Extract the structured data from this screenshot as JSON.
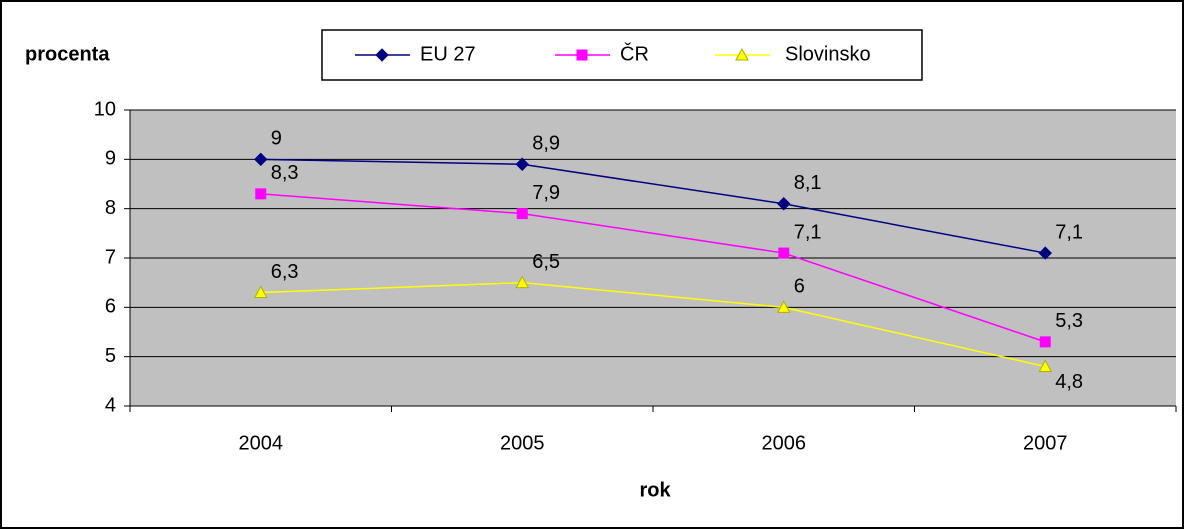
{
  "chart_data": {
    "type": "line",
    "y_label": "procenta",
    "x_label": "rok",
    "categories": [
      "2004",
      "2005",
      "2006",
      "2007"
    ],
    "series": [
      {
        "name": "EU 27",
        "color": "#000080",
        "marker": "diamond",
        "values": [
          9,
          8.9,
          8.1,
          7.1
        ],
        "value_labels": [
          "9",
          "8,9",
          "8,1",
          "7,1"
        ]
      },
      {
        "name": "ČR",
        "color": "#ff00ff",
        "marker": "square",
        "values": [
          8.3,
          7.9,
          7.1,
          5.3
        ],
        "value_labels": [
          "8,3",
          "7,9",
          "7,1",
          "5,3"
        ]
      },
      {
        "name": "Slovinsko",
        "color": "#ffff00",
        "marker": "triangle",
        "values": [
          6.3,
          6.5,
          6,
          4.8
        ],
        "value_labels": [
          "6,3",
          "6,5",
          "6",
          "4,8"
        ]
      }
    ],
    "ylim": [
      4,
      10
    ],
    "yticks": [
      4,
      5,
      6,
      7,
      8,
      9,
      10
    ],
    "grid": true
  }
}
